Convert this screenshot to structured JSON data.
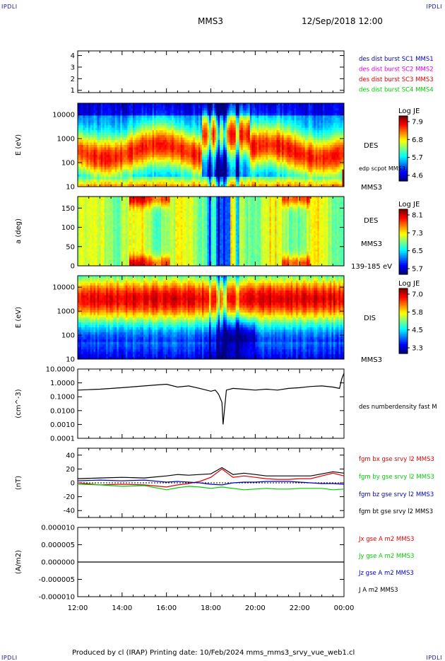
{
  "corner_labels": {
    "top_left": "IPDLI",
    "top_right": "IPDLI",
    "bottom_left": "IPDLI",
    "bottom_right": "IPDLI"
  },
  "header": {
    "spacecraft": "MMS3",
    "datetime": "12/Sep/2018 12:00"
  },
  "footer": {
    "text": "Produced by cl (IRAP)   Printing date: 10/Feb/2024   mms_mms3_srvy_vue_web1.cl"
  },
  "colors": {
    "blue": "#0000c8",
    "magenta": "#e000e0",
    "red": "#e00000",
    "green": "#00cc00",
    "black": "#000000"
  },
  "chart_data": [
    {
      "type": "line",
      "title": "",
      "xlabel": "",
      "ylabel": "",
      "ylim": [
        0.8,
        4.4
      ],
      "yticks": [
        "1",
        "2",
        "3",
        "4"
      ],
      "legend_position": "right",
      "series": [
        {
          "name": "des dist burst SC1 MMS1",
          "color": "#0000c8"
        },
        {
          "name": "des dist burst SC2 MMS2",
          "color": "#e000e0"
        },
        {
          "name": "des dist burst SC3 MMS3",
          "color": "#e00000"
        },
        {
          "name": "des dist burst SC4 MMS4",
          "color": "#00cc00"
        }
      ]
    },
    {
      "type": "heatmap",
      "ylabel": "E (eV)",
      "yscale": "log",
      "ylim": [
        10,
        30000
      ],
      "yticks": [
        "10",
        "100",
        "1000",
        "10000"
      ],
      "right_labels": [
        "DES",
        "edp scpot MMS3",
        "MMS3"
      ],
      "colorbar": {
        "title": "Log JE",
        "min": 4.6,
        "max": 7.9,
        "ticks": [
          "7.9",
          "6.8",
          "5.7",
          "4.6"
        ]
      }
    },
    {
      "type": "heatmap",
      "ylabel": "a (deg)",
      "ylim": [
        0,
        180
      ],
      "yticks": [
        "0",
        "50",
        "100",
        "150"
      ],
      "right_labels": [
        "DES",
        "MMS3",
        "139-185 eV"
      ],
      "colorbar": {
        "title": "Log JE",
        "min": 5.7,
        "max": 8.1,
        "ticks": [
          "8.1",
          "7.3",
          "6.5",
          "5.7"
        ]
      }
    },
    {
      "type": "heatmap",
      "ylabel": "E (eV)",
      "yscale": "log",
      "ylim": [
        10,
        30000
      ],
      "yticks": [
        "10",
        "100",
        "1000",
        "10000"
      ],
      "right_labels": [
        "DIS",
        "MMS3"
      ],
      "colorbar": {
        "title": "Log JE",
        "min": 3.3,
        "max": 7.0,
        "ticks": [
          "7.0",
          "5.8",
          "4.5",
          "3.3"
        ]
      }
    },
    {
      "type": "line",
      "ylabel": "(cm^-3)",
      "yscale": "log",
      "ylim": [
        0.0001,
        10
      ],
      "yticks": [
        "10.0000",
        "1.0000",
        "0.1000",
        "0.0100",
        "0.0010",
        "0.0001"
      ],
      "series": [
        {
          "name": "des numberdensity fast M",
          "color": "#000000",
          "x": [
            12,
            13,
            14,
            15,
            15.5,
            16,
            16.5,
            17,
            17.5,
            17.8,
            18,
            18.2,
            18.35,
            18.5,
            18.55,
            18.7,
            19,
            19.5,
            20,
            20.5,
            21,
            21.5,
            22,
            22.5,
            23,
            23.5,
            23.8,
            23.9,
            24
          ],
          "y": [
            0.3,
            0.35,
            0.45,
            0.6,
            0.7,
            0.8,
            0.5,
            0.6,
            0.4,
            0.3,
            0.25,
            0.3,
            0.15,
            0.04,
            0.001,
            0.3,
            0.4,
            0.35,
            0.3,
            0.35,
            0.3,
            0.4,
            0.45,
            0.55,
            0.6,
            0.5,
            0.4,
            2,
            5
          ]
        }
      ]
    },
    {
      "type": "line",
      "ylabel": "(nT)",
      "ylim": [
        -50,
        50
      ],
      "yticks": [
        "40",
        "20",
        "0",
        "-20",
        "-40"
      ],
      "series": [
        {
          "name": "fgm bx gse srvy l2 MMS3",
          "color": "#e00000",
          "x": [
            12,
            13,
            14,
            15,
            16,
            16.5,
            17,
            17.5,
            18,
            18.5,
            19,
            19.5,
            20,
            20.5,
            21,
            21.5,
            22,
            22.5,
            23,
            23.5,
            24
          ],
          "y": [
            0,
            -3,
            -2,
            -3,
            -6,
            -3,
            -1,
            2,
            8,
            20,
            8,
            10,
            8,
            6,
            5,
            5,
            6,
            6,
            10,
            14,
            10
          ]
        },
        {
          "name": "fgm by gse srvy l2 MMS3",
          "color": "#00cc00",
          "x": [
            12,
            13,
            14,
            15,
            16,
            16.5,
            17,
            17.5,
            18,
            18.5,
            19,
            19.5,
            20,
            20.5,
            21,
            21.5,
            22,
            22.5,
            23,
            23.5,
            24
          ],
          "y": [
            -2,
            -3,
            -5,
            -4,
            -10,
            -7,
            -5,
            -6,
            -8,
            -6,
            -8,
            -10,
            -9,
            -8,
            -9,
            -9,
            -8,
            -8,
            -8,
            -10,
            -9
          ]
        },
        {
          "name": "fgm bz gse srvy l2 MMS3",
          "color": "#0000c8",
          "x": [
            12,
            13,
            14,
            15,
            16,
            16.5,
            17,
            17.5,
            18,
            18.5,
            19,
            19.5,
            20,
            20.5,
            21,
            21.5,
            22,
            22.5,
            23,
            23.5,
            24
          ],
          "y": [
            3,
            4,
            3,
            4,
            1,
            2,
            1,
            0,
            -2,
            -3,
            0,
            1,
            1,
            2,
            2,
            2,
            1,
            0,
            -1,
            -1,
            -2
          ]
        },
        {
          "name": "fgm bt gse srvy l2 MMS3",
          "color": "#000000",
          "x": [
            12,
            13,
            14,
            15,
            16,
            16.5,
            17,
            17.5,
            18,
            18.5,
            19,
            19.5,
            20,
            20.5,
            21,
            21.5,
            22,
            22.5,
            23,
            23.5,
            24
          ],
          "y": [
            6,
            7,
            8,
            7,
            10,
            12,
            11,
            12,
            13,
            22,
            12,
            14,
            12,
            10,
            10,
            10,
            10,
            10,
            13,
            16,
            14
          ]
        }
      ]
    },
    {
      "type": "line",
      "ylabel": "(A/m2)",
      "ylim": [
        -1e-05,
        1e-05
      ],
      "yticks": [
        "0.000010",
        "0.000005",
        "0.000000",
        "-0.000005",
        "-0.000010"
      ],
      "xticks": [
        "12:00",
        "14:00",
        "16:00",
        "18:00",
        "20:00",
        "22:00",
        "00:00"
      ],
      "series": [
        {
          "name": "Jx gse A m2 MMS3",
          "color": "#e00000"
        },
        {
          "name": "Jy gse A m2 MMS3",
          "color": "#00cc00"
        },
        {
          "name": "Jz gse A m2 MMS3",
          "color": "#0000c8"
        },
        {
          "name": "J A m2 MMS3",
          "color": "#000000",
          "x": [
            12,
            14,
            16,
            18,
            20,
            22,
            24
          ],
          "y": [
            0,
            0,
            0,
            0,
            0,
            0,
            0
          ]
        }
      ]
    }
  ]
}
